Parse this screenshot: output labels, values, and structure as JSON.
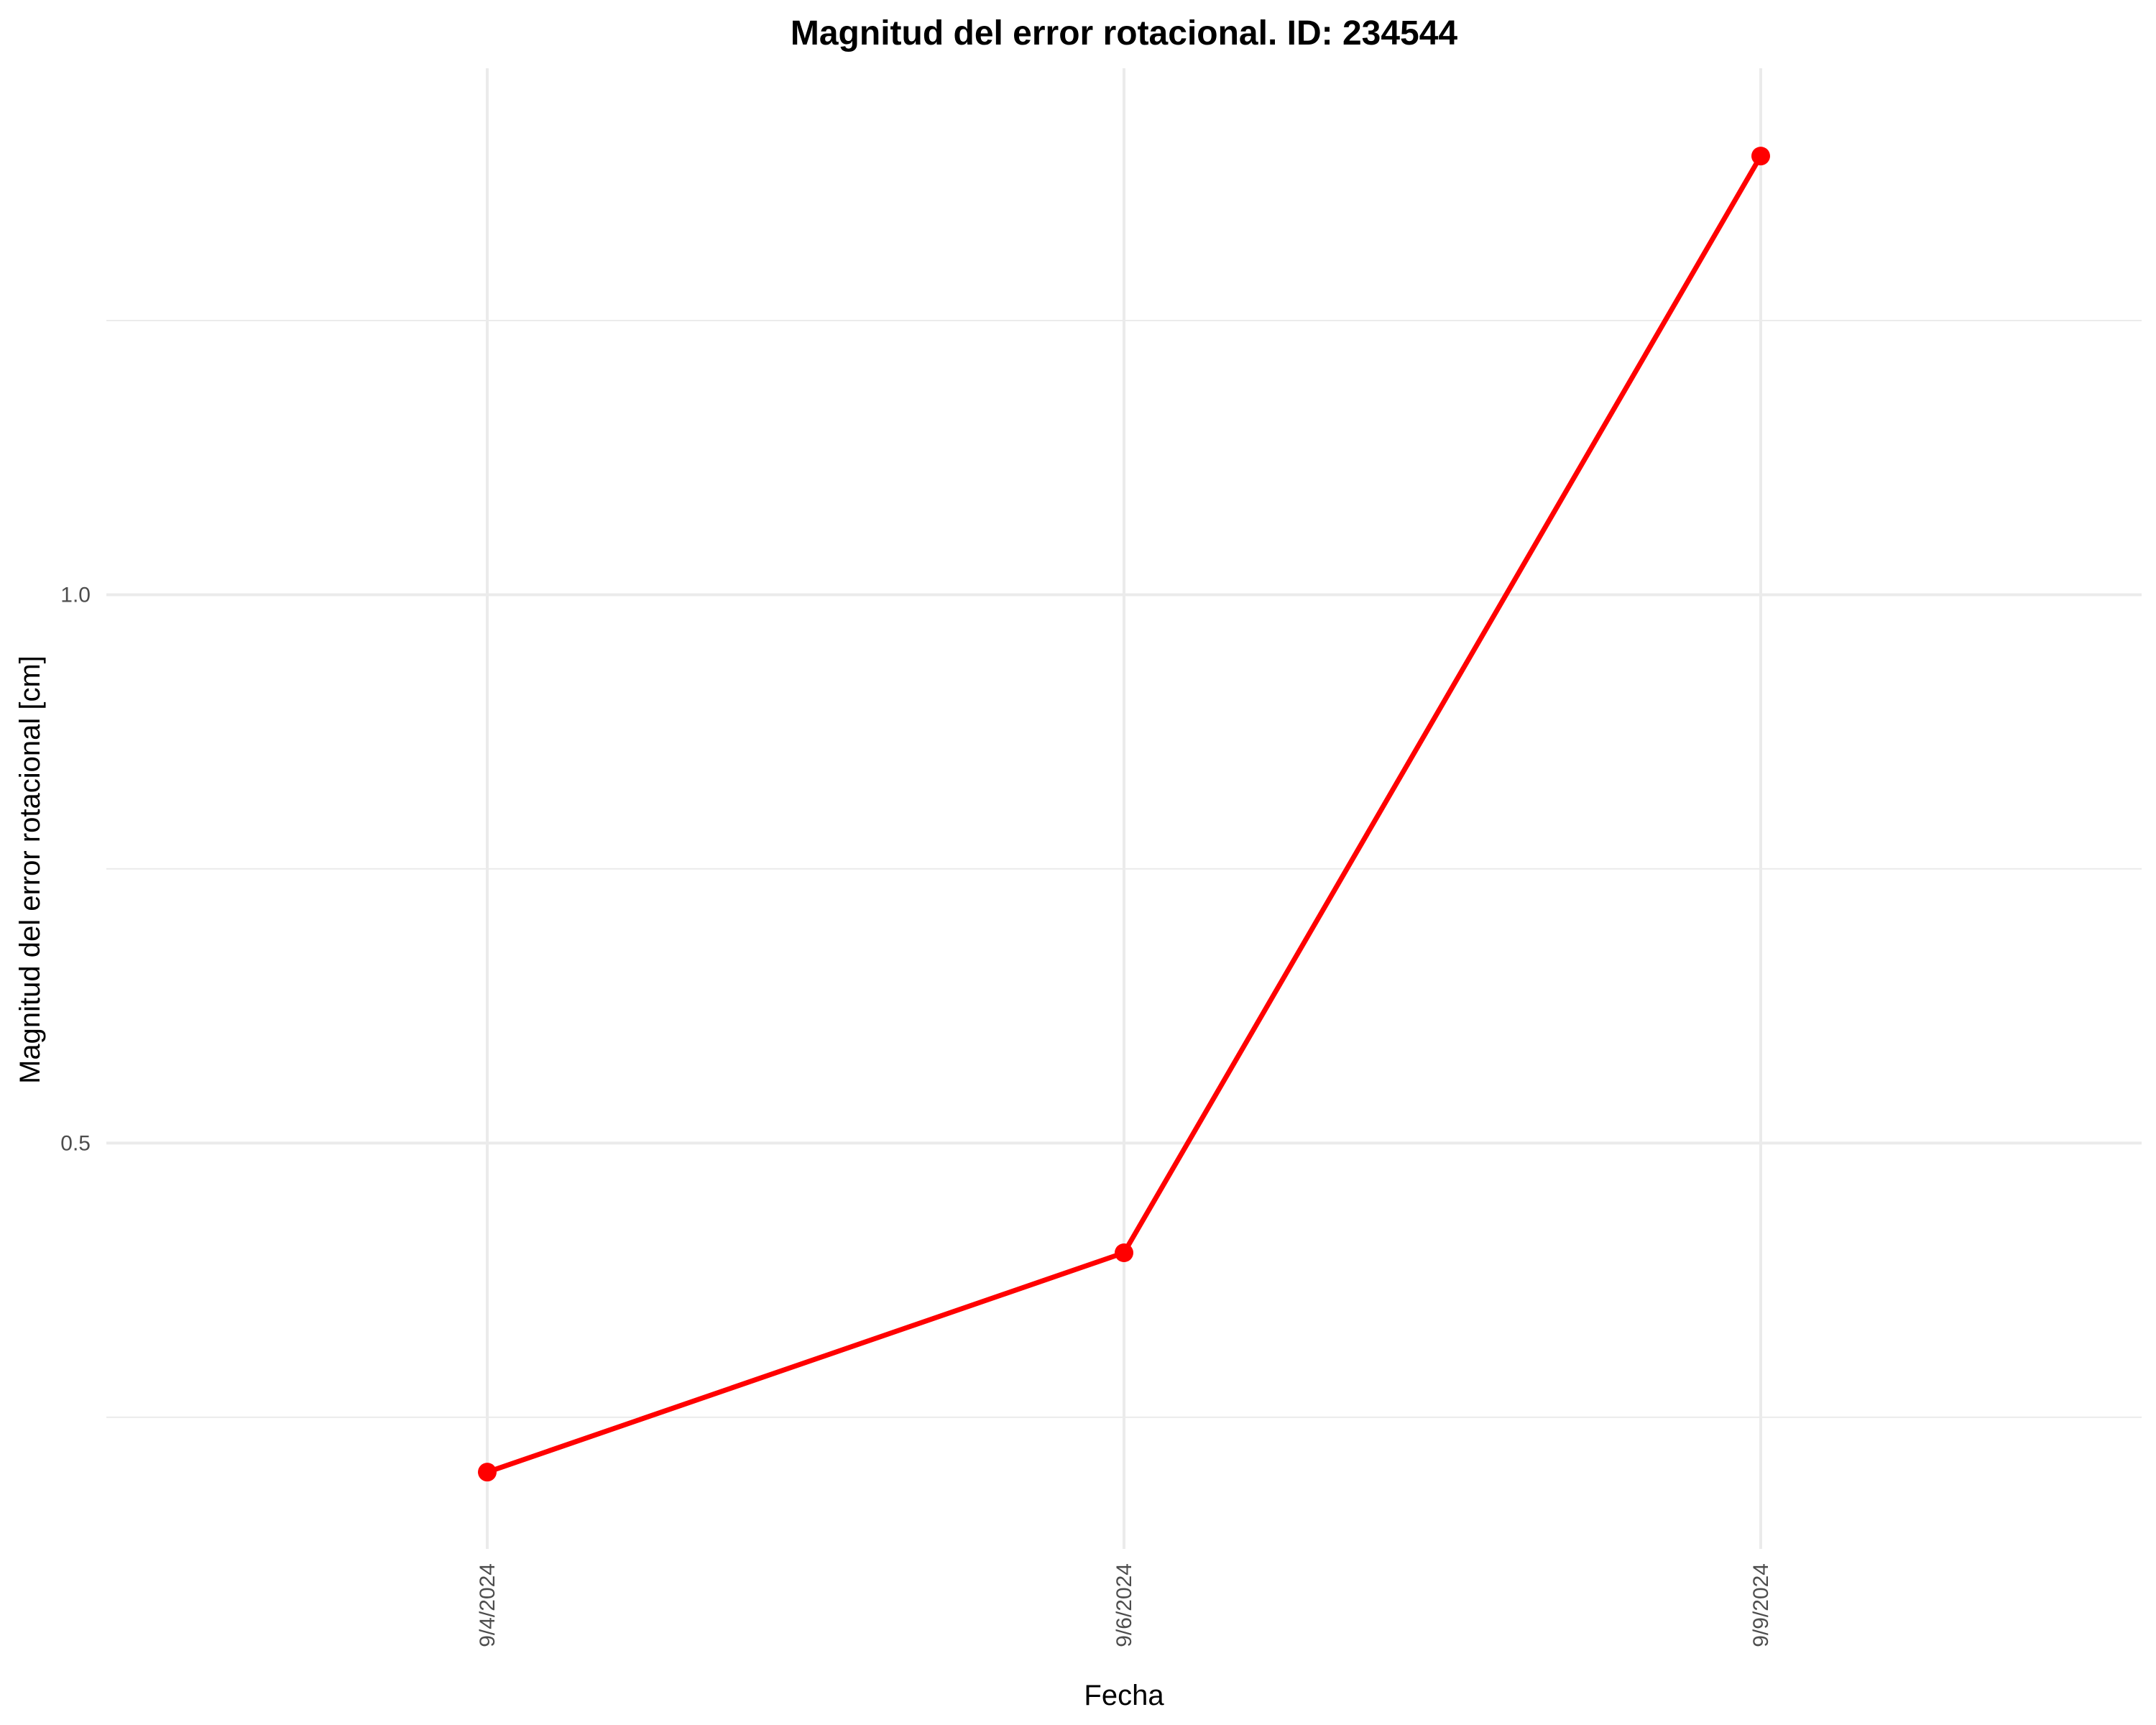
{
  "chart_data": {
    "type": "line",
    "title": "Magnitud del error rotacional. ID: 234544",
    "xlabel": "Fecha",
    "ylabel": "Magnitud del error rotacional [cm]",
    "x": [
      "9/4/2024",
      "9/6/2024",
      "9/9/2024"
    ],
    "series": [
      {
        "values": [
          0.2,
          0.4,
          1.4
        ]
      }
    ],
    "ylim": [
      0.13,
      1.48
    ],
    "y_ticks": [
      0.5,
      1.0
    ],
    "y_tick_labels": [
      "0.5",
      "1.0"
    ],
    "grid": true,
    "line_color": "#ff0000",
    "grid_color": "#ebebeb",
    "background": "#ffffff"
  }
}
